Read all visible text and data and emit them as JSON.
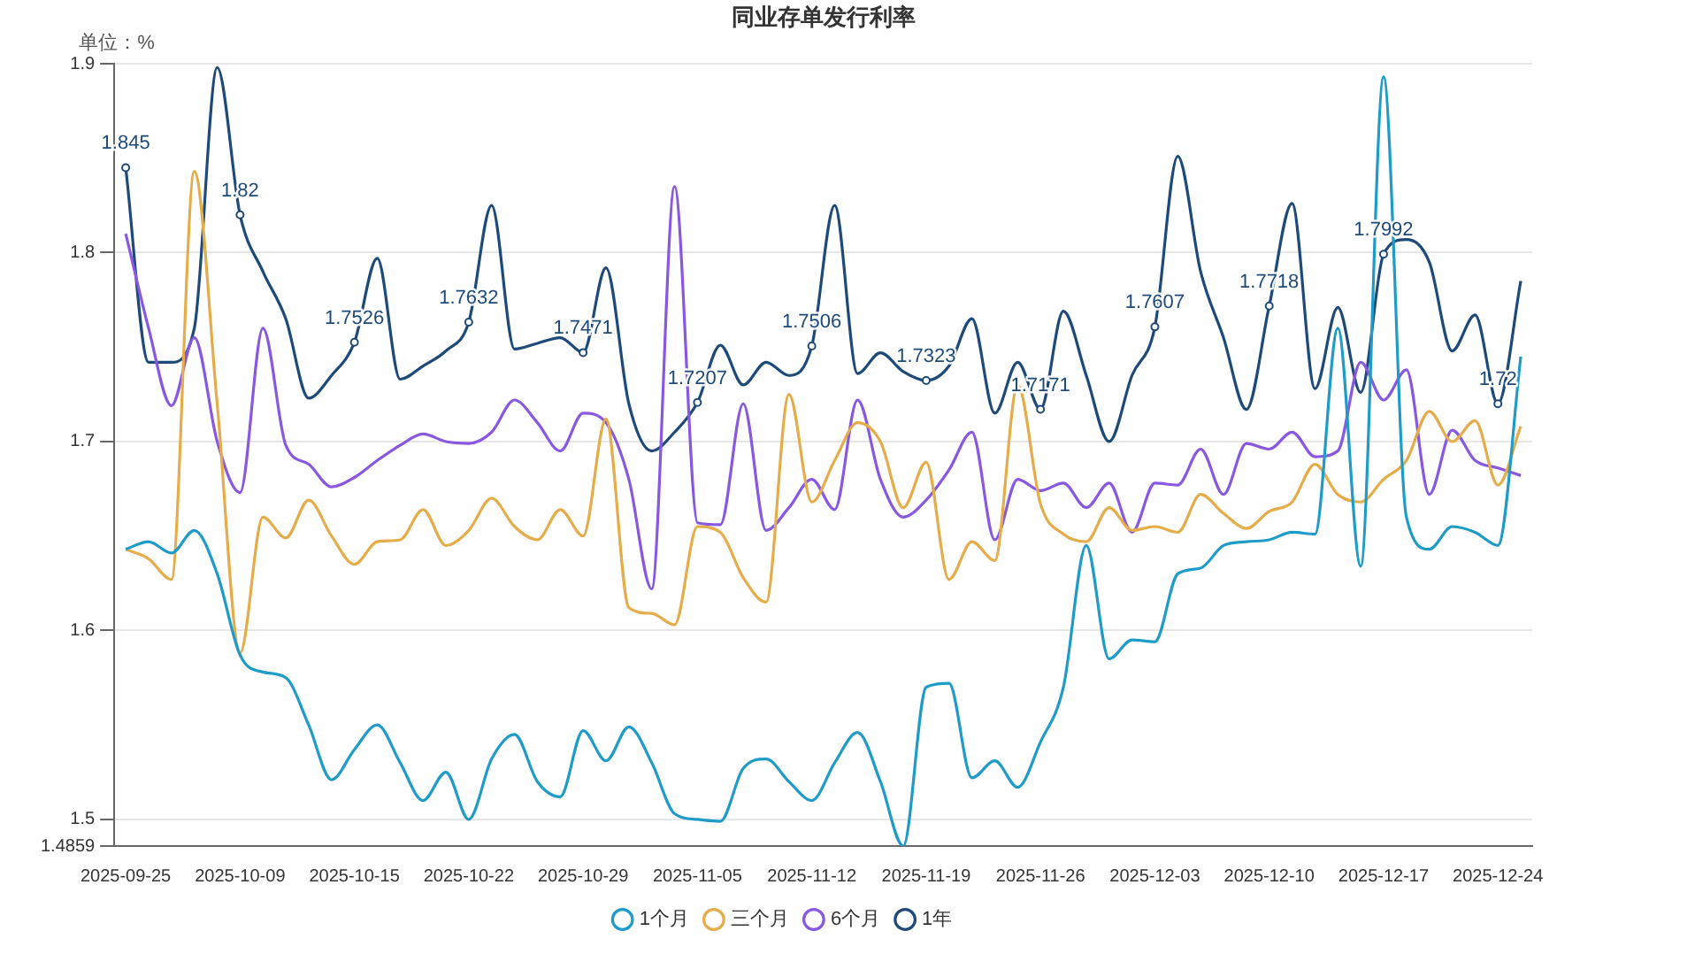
{
  "chart_data": {
    "type": "line",
    "title": "同业存单发行利率",
    "ylabel": "单位：%",
    "categories": [
      "2025-09-25",
      null,
      null,
      null,
      null,
      "2025-10-09",
      null,
      null,
      null,
      null,
      "2025-10-15",
      null,
      null,
      null,
      null,
      "2025-10-22",
      null,
      null,
      null,
      null,
      "2025-10-29",
      null,
      null,
      null,
      null,
      "2025-11-05",
      null,
      null,
      null,
      null,
      "2025-11-12",
      null,
      null,
      null,
      null,
      "2025-11-19",
      null,
      null,
      null,
      null,
      "2025-11-26",
      null,
      null,
      null,
      null,
      "2025-12-03",
      null,
      null,
      null,
      null,
      "2025-12-10",
      null,
      null,
      null,
      null,
      "2025-12-17",
      null,
      null,
      null,
      null,
      "2025-12-24",
      null
    ],
    "ylim": [
      1.4859,
      1.9
    ],
    "yticks": [
      1.4859,
      1.5,
      1.6,
      1.7,
      1.8,
      1.9
    ],
    "grid": "y",
    "legend": "bottom",
    "line_style": "solid",
    "series": [
      {
        "name": "1个月",
        "color": "#1e9bc6",
        "values": [
          1.643,
          1.647,
          1.641,
          1.653,
          1.63,
          1.587,
          1.578,
          1.575,
          1.55,
          1.521,
          1.537,
          1.55,
          1.53,
          1.51,
          1.525,
          1.5,
          1.532,
          1.545,
          1.52,
          1.512,
          1.547,
          1.531,
          1.549,
          1.53,
          1.503,
          1.5,
          1.499,
          1.527,
          1.532,
          1.52,
          1.51,
          1.53,
          1.546,
          1.52,
          1.4859,
          1.57,
          1.572,
          1.522,
          1.531,
          1.517,
          1.541,
          1.57,
          1.645,
          1.585,
          1.595,
          1.594,
          1.63,
          1.633,
          1.645,
          1.647,
          1.648,
          1.652,
          1.651,
          1.76,
          1.634,
          1.893,
          1.66,
          1.643,
          1.655,
          1.652,
          1.645,
          1.745
        ]
      },
      {
        "name": "三个月",
        "color": "#e4ad4a",
        "values": [
          1.643,
          1.638,
          1.627,
          1.843,
          1.72,
          1.588,
          1.66,
          1.649,
          1.669,
          1.65,
          1.635,
          1.647,
          1.648,
          1.664,
          1.645,
          1.653,
          1.67,
          1.655,
          1.648,
          1.664,
          1.65,
          1.712,
          1.612,
          1.609,
          1.603,
          1.655,
          1.652,
          1.628,
          1.615,
          1.725,
          1.668,
          1.69,
          1.71,
          1.7,
          1.665,
          1.689,
          1.627,
          1.647,
          1.637,
          1.73,
          1.667,
          1.651,
          1.647,
          1.665,
          1.653,
          1.655,
          1.652,
          1.672,
          1.662,
          1.654,
          1.663,
          1.668,
          1.688,
          1.672,
          1.668,
          1.68,
          1.69,
          1.716,
          1.7,
          1.711,
          1.677,
          1.708
        ]
      },
      {
        "name": "6个月",
        "color": "#8859e0",
        "values": [
          1.81,
          1.76,
          1.719,
          1.755,
          1.7,
          1.673,
          1.76,
          1.698,
          1.688,
          1.676,
          1.681,
          1.69,
          1.698,
          1.704,
          1.7,
          1.699,
          1.705,
          1.722,
          1.71,
          1.695,
          1.715,
          1.71,
          1.68,
          1.622,
          1.835,
          1.657,
          1.656,
          1.72,
          1.653,
          1.665,
          1.68,
          1.664,
          1.722,
          1.68,
          1.66,
          1.669,
          1.685,
          1.705,
          1.648,
          1.68,
          1.674,
          1.678,
          1.665,
          1.678,
          1.652,
          1.678,
          1.677,
          1.696,
          1.672,
          1.699,
          1.696,
          1.705,
          1.692,
          1.695,
          1.742,
          1.722,
          1.738,
          1.672,
          1.706,
          1.69,
          1.686,
          1.682
        ]
      },
      {
        "name": "1年",
        "color": "#1d4a78",
        "values": [
          1.845,
          1.742,
          1.742,
          1.76,
          1.898,
          1.82,
          1.79,
          1.765,
          1.723,
          1.735,
          1.7526,
          1.797,
          1.733,
          1.74,
          1.748,
          1.7632,
          1.825,
          1.749,
          1.752,
          1.755,
          1.7471,
          1.792,
          1.72,
          1.695,
          1.705,
          1.7207,
          1.751,
          1.73,
          1.742,
          1.735,
          1.7506,
          1.825,
          1.736,
          1.747,
          1.737,
          1.7323,
          1.74,
          1.765,
          1.715,
          1.742,
          1.7171,
          1.769,
          1.735,
          1.7,
          1.735,
          1.7607,
          1.851,
          1.79,
          1.755,
          1.717,
          1.7718,
          1.826,
          1.728,
          1.771,
          1.726,
          1.7992,
          1.807,
          1.795,
          1.748,
          1.767,
          1.72,
          1.785
        ],
        "value_labels": [
          "1.845",
          null,
          null,
          null,
          null,
          "1.82",
          null,
          null,
          null,
          null,
          "1.7526",
          null,
          null,
          null,
          null,
          "1.7632",
          null,
          null,
          null,
          null,
          "1.7471",
          null,
          null,
          null,
          null,
          "1.7207",
          null,
          null,
          null,
          null,
          "1.7506",
          null,
          null,
          null,
          null,
          "1.7323",
          null,
          null,
          null,
          null,
          "1.7171",
          null,
          null,
          null,
          null,
          "1.7607",
          null,
          null,
          null,
          null,
          "1.7718",
          null,
          null,
          null,
          null,
          "1.7992",
          null,
          null,
          null,
          null,
          "1.72",
          null
        ]
      }
    ]
  }
}
